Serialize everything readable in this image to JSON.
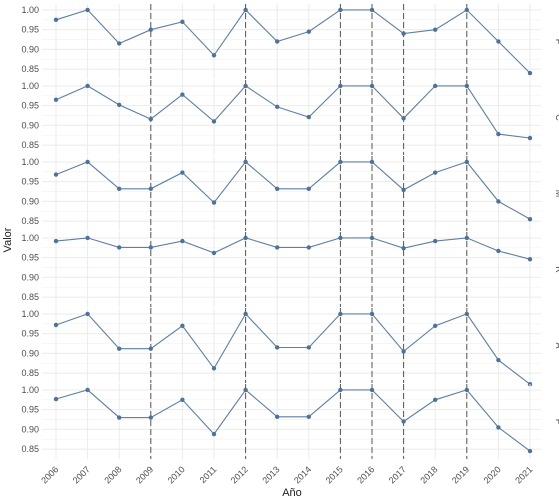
{
  "chart_data": {
    "type": "line",
    "title": "",
    "xlabel": "Año",
    "ylabel": "Valor",
    "x": [
      2006,
      2007,
      2008,
      2009,
      2010,
      2011,
      2012,
      2013,
      2014,
      2015,
      2016,
      2017,
      2018,
      2019,
      2020,
      2021
    ],
    "ylim": [
      0.83,
      1.01
    ],
    "yticks": [
      "0.85",
      "0.90",
      "0.95",
      "1.00"
    ],
    "grid": true,
    "facet_vlines": [
      2009,
      2012,
      2015,
      2016,
      2017,
      2019
    ],
    "panels": [
      {
        "strip": "F",
        "values": [
          0.975,
          1.0,
          0.915,
          0.95,
          0.97,
          0.885,
          1.0,
          0.92,
          0.945,
          1.0,
          1.0,
          0.94,
          0.95,
          1.0,
          0.92,
          0.84
        ]
      },
      {
        "strip": "C",
        "values": [
          0.965,
          1.0,
          0.952,
          0.916,
          0.978,
          0.91,
          1.0,
          0.947,
          0.921,
          1.0,
          1.0,
          0.918,
          1.0,
          1.0,
          0.878,
          0.868
        ]
      },
      {
        "strip": "M",
        "values": [
          0.968,
          1.0,
          0.932,
          0.932,
          0.973,
          0.897,
          1.0,
          0.932,
          0.932,
          1.0,
          1.0,
          0.929,
          0.973,
          1.0,
          0.9,
          0.855
        ]
      },
      {
        "strip": "R",
        "values": [
          0.992,
          1.0,
          0.976,
          0.976,
          0.992,
          0.962,
          1.0,
          0.976,
          0.976,
          1.0,
          1.0,
          0.974,
          0.992,
          1.0,
          0.967,
          0.946
        ]
      },
      {
        "strip": "A",
        "values": [
          0.972,
          1.0,
          0.912,
          0.912,
          0.97,
          0.862,
          1.0,
          0.915,
          0.915,
          1.0,
          1.0,
          0.905,
          0.97,
          1.0,
          0.883,
          0.822
        ]
      },
      {
        "strip": "F",
        "values": [
          0.977,
          1.0,
          0.93,
          0.93,
          0.975,
          0.888,
          1.0,
          0.932,
          0.932,
          1.0,
          1.0,
          0.92,
          0.975,
          1.0,
          0.905,
          0.845
        ]
      }
    ]
  },
  "colors": {
    "line": "#5b7fa6",
    "point": "#4f7398",
    "grid": "#ebebeb",
    "vline": "#555555"
  }
}
